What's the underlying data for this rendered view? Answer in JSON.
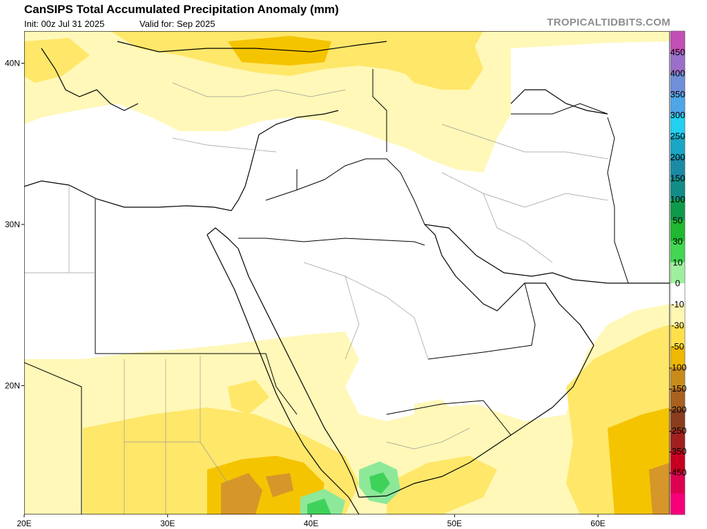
{
  "header": {
    "title": "CanSIPS Total Accumulated Precipitation Anomaly (mm)",
    "init": "Init: 00z Jul 31 2025",
    "valid": "Valid for: Sep 2025",
    "brand": "TROPICALTIDBITS.COM"
  },
  "map": {
    "lon_range": [
      20,
      65
    ],
    "lat_range": [
      12,
      42
    ],
    "lon_labels": [
      "20E",
      "30E",
      "40E",
      "50E",
      "60E"
    ],
    "lat_labels": [
      "40N",
      "30N",
      "20N"
    ]
  },
  "colorbar": {
    "labels": [
      "450",
      "400",
      "350",
      "300",
      "250",
      "200",
      "150",
      "100",
      "50",
      "30",
      "10",
      "0",
      "-10",
      "-30",
      "-50",
      "-100",
      "-150",
      "-200",
      "-250",
      "-350",
      "-450"
    ],
    "colors": [
      "#c24fb3",
      "#9b6fc9",
      "#6f8fd8",
      "#4ea6e8",
      "#22d0f0",
      "#1aa6c4",
      "#1a8aa5",
      "#128c86",
      "#0e9a4a",
      "#1fb830",
      "#42d652",
      "#9ef0a0",
      "#ffffff",
      "#fff6b0",
      "#ffe04a",
      "#f0b800",
      "#c98c1a",
      "#a8611f",
      "#8a3e1e",
      "#a0201e",
      "#c50020",
      "#de0050",
      "#f5007a"
    ]
  }
}
